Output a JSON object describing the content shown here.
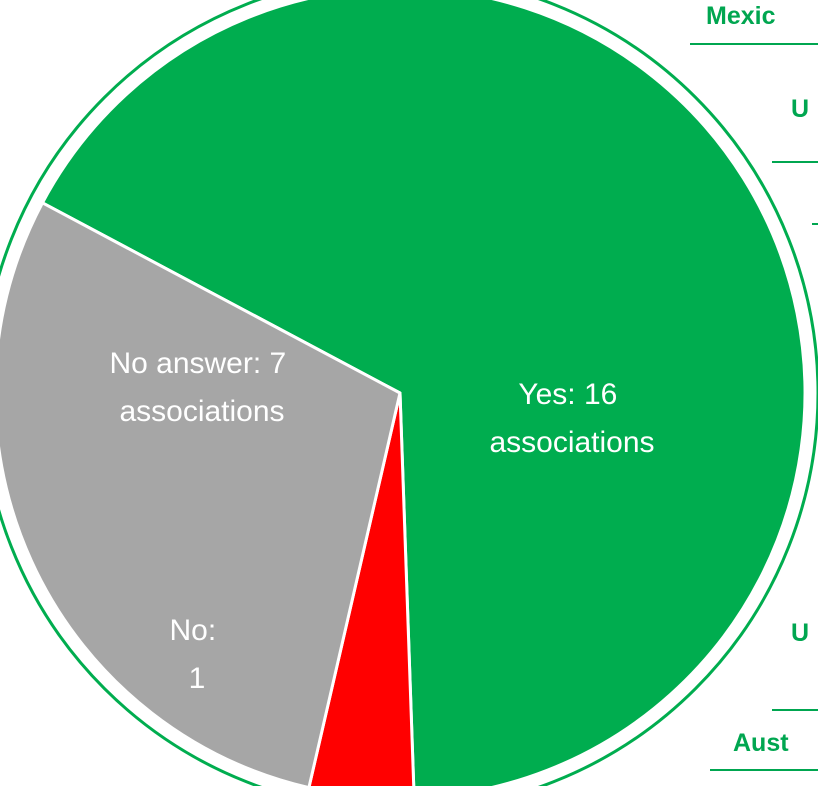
{
  "chart_data": {
    "type": "pie",
    "slices": [
      {
        "label_lines": [
          "Yes: 16",
          "associations"
        ],
        "value": 16,
        "color": "#00ad4f"
      },
      {
        "label_lines": [
          "No:",
          "1"
        ],
        "value": 1,
        "color": "#ff0000"
      },
      {
        "label_lines": [
          "No answer: 7",
          "associations"
        ],
        "value": 7,
        "color": "#a6a6a6"
      }
    ]
  },
  "background_table": {
    "labels": [
      "Mexic",
      "U",
      "U",
      "Aust"
    ],
    "accent_color": "#00a650"
  }
}
